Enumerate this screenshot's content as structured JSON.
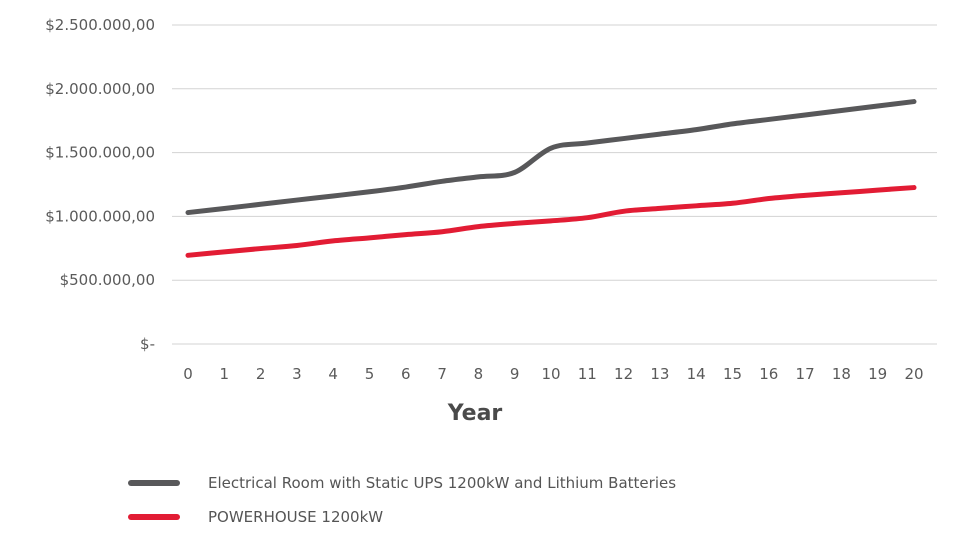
{
  "chart_data": {
    "type": "line",
    "x": [
      0,
      1,
      2,
      3,
      4,
      5,
      6,
      7,
      8,
      9,
      10,
      11,
      12,
      13,
      14,
      15,
      16,
      17,
      18,
      19,
      20
    ],
    "x_tick_labels": [
      "0",
      "1",
      "2",
      "3",
      "4",
      "5",
      "6",
      "7",
      "8",
      "9",
      "10",
      "11",
      "12",
      "13",
      "14",
      "15",
      "16",
      "17",
      "18",
      "19",
      "20"
    ],
    "y_tick_labels": [
      "$-",
      "$500.000,00",
      "$1.000.000,00",
      "$1.500.000,00",
      "$2.000.000,00",
      "$2.500.000,00"
    ],
    "ylim": [
      0,
      2500000
    ],
    "xlabel": "Year",
    "ylabel": "",
    "grid": true,
    "legend_position": "bottom",
    "series": [
      {
        "name": "Electrical Room with Static UPS 1200kW and Lithium Batteries",
        "color": "#58585a",
        "values": [
          1030000,
          1062000,
          1095000,
          1128000,
          1160000,
          1193000,
          1230000,
          1275000,
          1310000,
          1345000,
          1535000,
          1575000,
          1610000,
          1645000,
          1680000,
          1725000,
          1760000,
          1795000,
          1830000,
          1865000,
          1900000
        ]
      },
      {
        "name": "POWERHOUSE 1200kW",
        "color": "#e21c34",
        "values": [
          695000,
          722000,
          748000,
          772000,
          808000,
          832000,
          857000,
          880000,
          920000,
          945000,
          965000,
          990000,
          1040000,
          1063000,
          1083000,
          1103000,
          1140000,
          1165000,
          1185000,
          1206000,
          1226000
        ]
      }
    ]
  }
}
